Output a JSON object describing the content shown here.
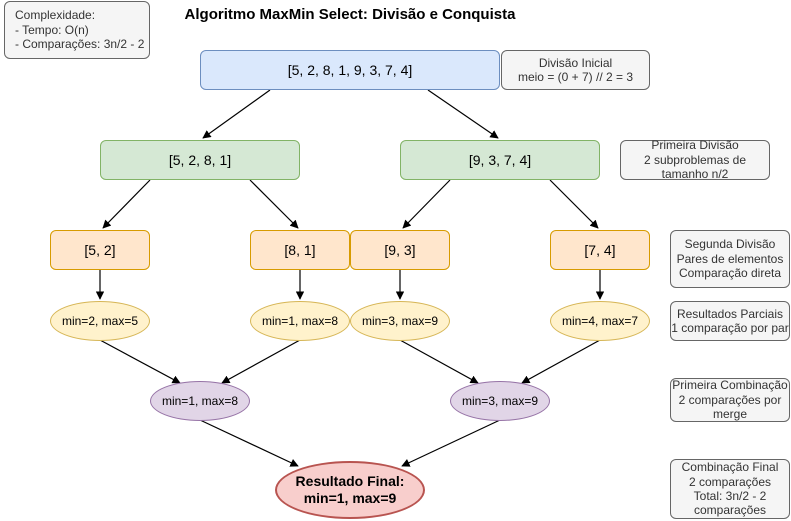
{
  "title": "Algoritmo MaxMin Select: Divisão e Conquista",
  "complexity": {
    "lines": [
      "Complexidade:",
      "- Tempo: O(n)",
      "- Comparações: 3n/2 - 2"
    ]
  },
  "nodes": {
    "root": "[5, 2, 8, 1, 9, 3, 7, 4]",
    "left1": "[5, 2, 8, 1]",
    "right1": "[9, 3, 7, 4]",
    "l2a": "[5, 2]",
    "l2b": "[8, 1]",
    "r2a": "[9, 3]",
    "r2b": "[7, 4]",
    "res1": "min=2, max=5",
    "res2": "min=1, max=8",
    "res3": "min=3, max=9",
    "res4": "min=4, max=7",
    "comb1": "min=1, max=8",
    "comb2": "min=3, max=9",
    "final_line1": "Resultado Final:",
    "final_line2": "min=1, max=9"
  },
  "notes": {
    "n1": [
      "Divisão Inicial",
      "meio = (0 + 7) // 2 = 3"
    ],
    "n2": [
      "Primeira Divisão",
      "2 subproblemas de",
      "tamanho n/2"
    ],
    "n3": [
      "Segunda Divisão",
      "Pares de elementos",
      "Comparação direta"
    ],
    "n4": [
      "Resultados Parciais",
      "1 comparação por par"
    ],
    "n5": [
      "Primeira Combinação",
      "2 comparações por",
      "merge"
    ],
    "n6": [
      "Combinação Final",
      "2 comparações",
      "Total: 3n/2 - 2",
      "comparações"
    ]
  },
  "colors": {
    "edge": "#000000"
  }
}
